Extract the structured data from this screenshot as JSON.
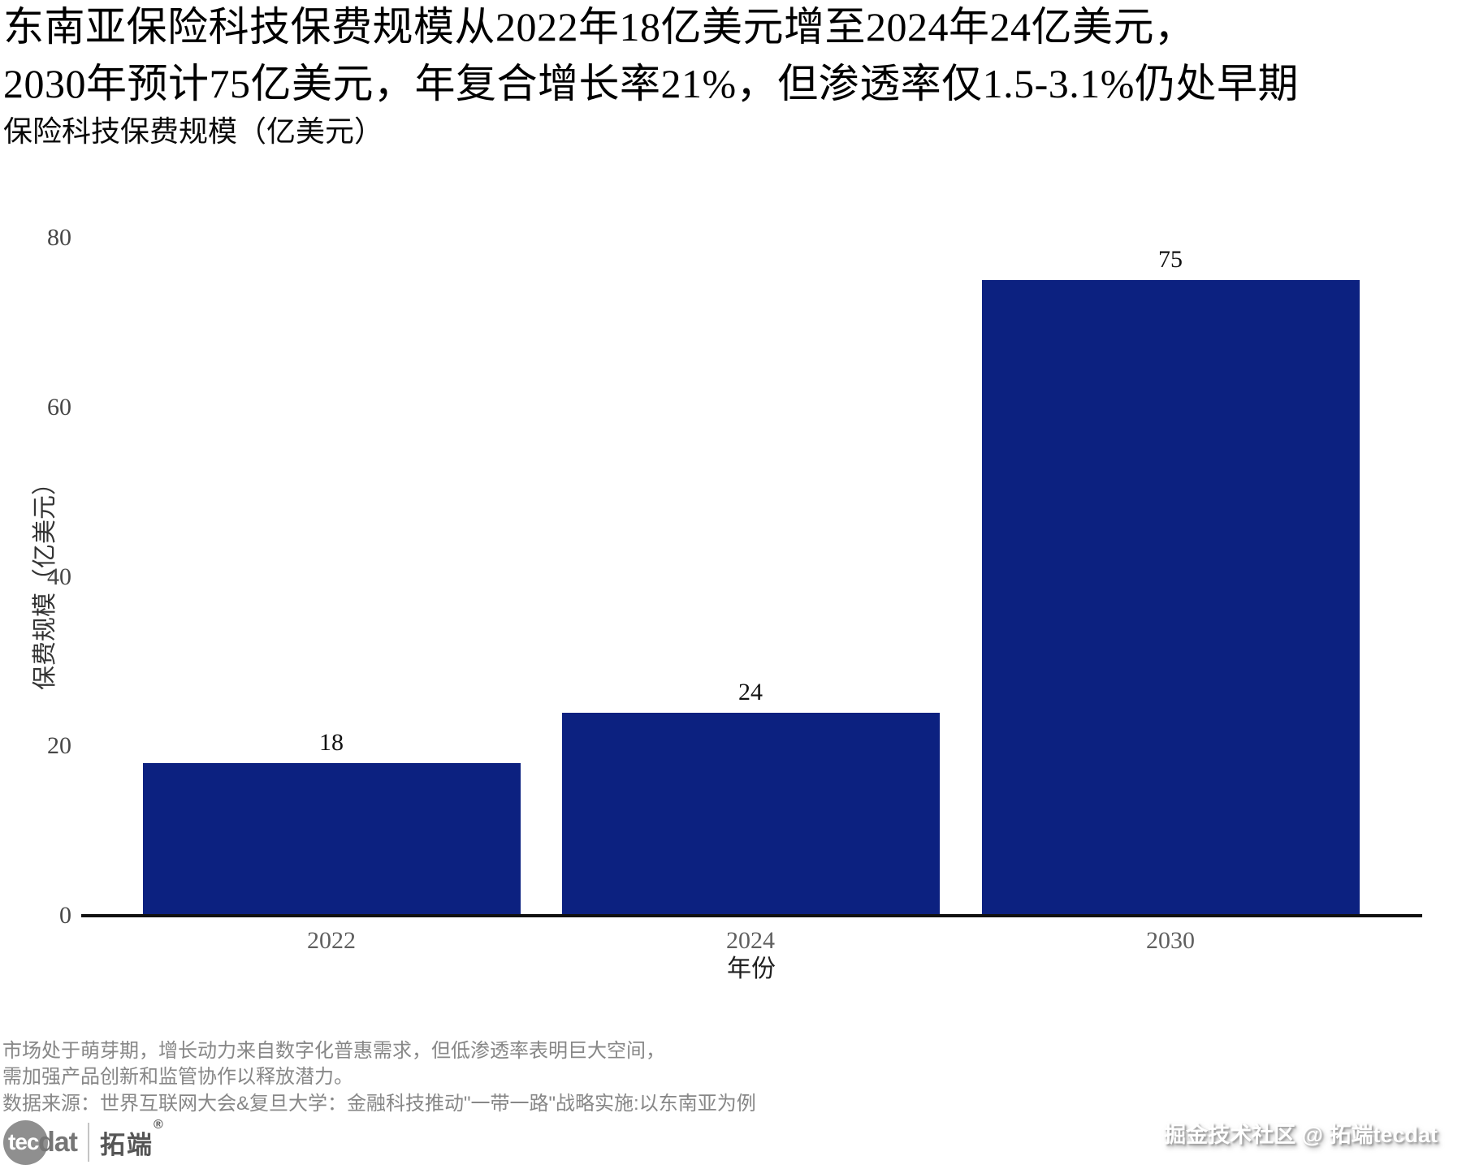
{
  "page": {
    "title_line1": "东南亚保险科技保费规模从2022年18亿美元增至2024年24亿美元，",
    "title_line2": "2030年预计75亿美元，年复合增长率21%，但渗透率仅1.5-3.1%仍处早期",
    "subtitle": "保险科技保费规模（亿美元）"
  },
  "chart_data": {
    "type": "bar",
    "title": "保险科技保费规模（亿美元）",
    "categories": [
      "2022",
      "2024",
      "2030"
    ],
    "values": [
      18,
      24,
      75
    ],
    "value_labels": [
      "18",
      "24",
      "75"
    ],
    "xlabel": "年份",
    "ylabel": "保费规模（亿美元）",
    "ylim": [
      0,
      80
    ],
    "yticks": [
      0,
      20,
      40,
      60,
      80
    ],
    "grid": false,
    "legend": "none",
    "bar_color": "#0c2180"
  },
  "footer": {
    "note_line1": "市场处于萌芽期，增长动力来自数字化普惠需求，但低渗透率表明巨大空间，",
    "note_line2": "需加强产品创新和监管协作以释放潜力。",
    "source_line": "数据来源：世界互联网大会&复旦大学：金融科技推动\"一带一路\"战略实施:以东南亚为例"
  },
  "branding": {
    "logo_circle_text": "tec",
    "logo_text": "dat",
    "logo_cn": "拓端",
    "logo_reg": "®",
    "watermark": "掘金技术社区 @ 拓端tecdat"
  }
}
